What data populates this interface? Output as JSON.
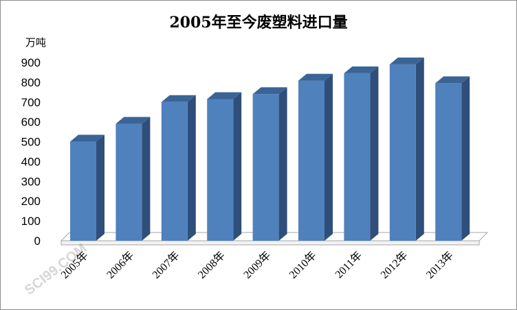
{
  "chart_data": {
    "type": "bar",
    "title": "2005年至今废塑料进口量",
    "ylabel": "万吨",
    "xlabel": "",
    "categories": [
      "2005年",
      "2006年",
      "2007年",
      "2008年",
      "2009年",
      "2010年",
      "2011年",
      "2012年",
      "2013年"
    ],
    "values": [
      500,
      590,
      700,
      715,
      740,
      808,
      845,
      890,
      795
    ],
    "ylim": [
      0,
      900
    ],
    "yticks": [
      0,
      100,
      200,
      300,
      400,
      500,
      600,
      700,
      800,
      900
    ],
    "grid": false,
    "style": "3d-column",
    "colors": {
      "bar_front": "#4f81bd",
      "bar_side": "#2f4f7a",
      "bar_top": "#3b6496",
      "floor": "#ffffff",
      "floor_edge": "#a6a6a6"
    }
  },
  "watermark": {
    "text": "SCI99.COM"
  }
}
